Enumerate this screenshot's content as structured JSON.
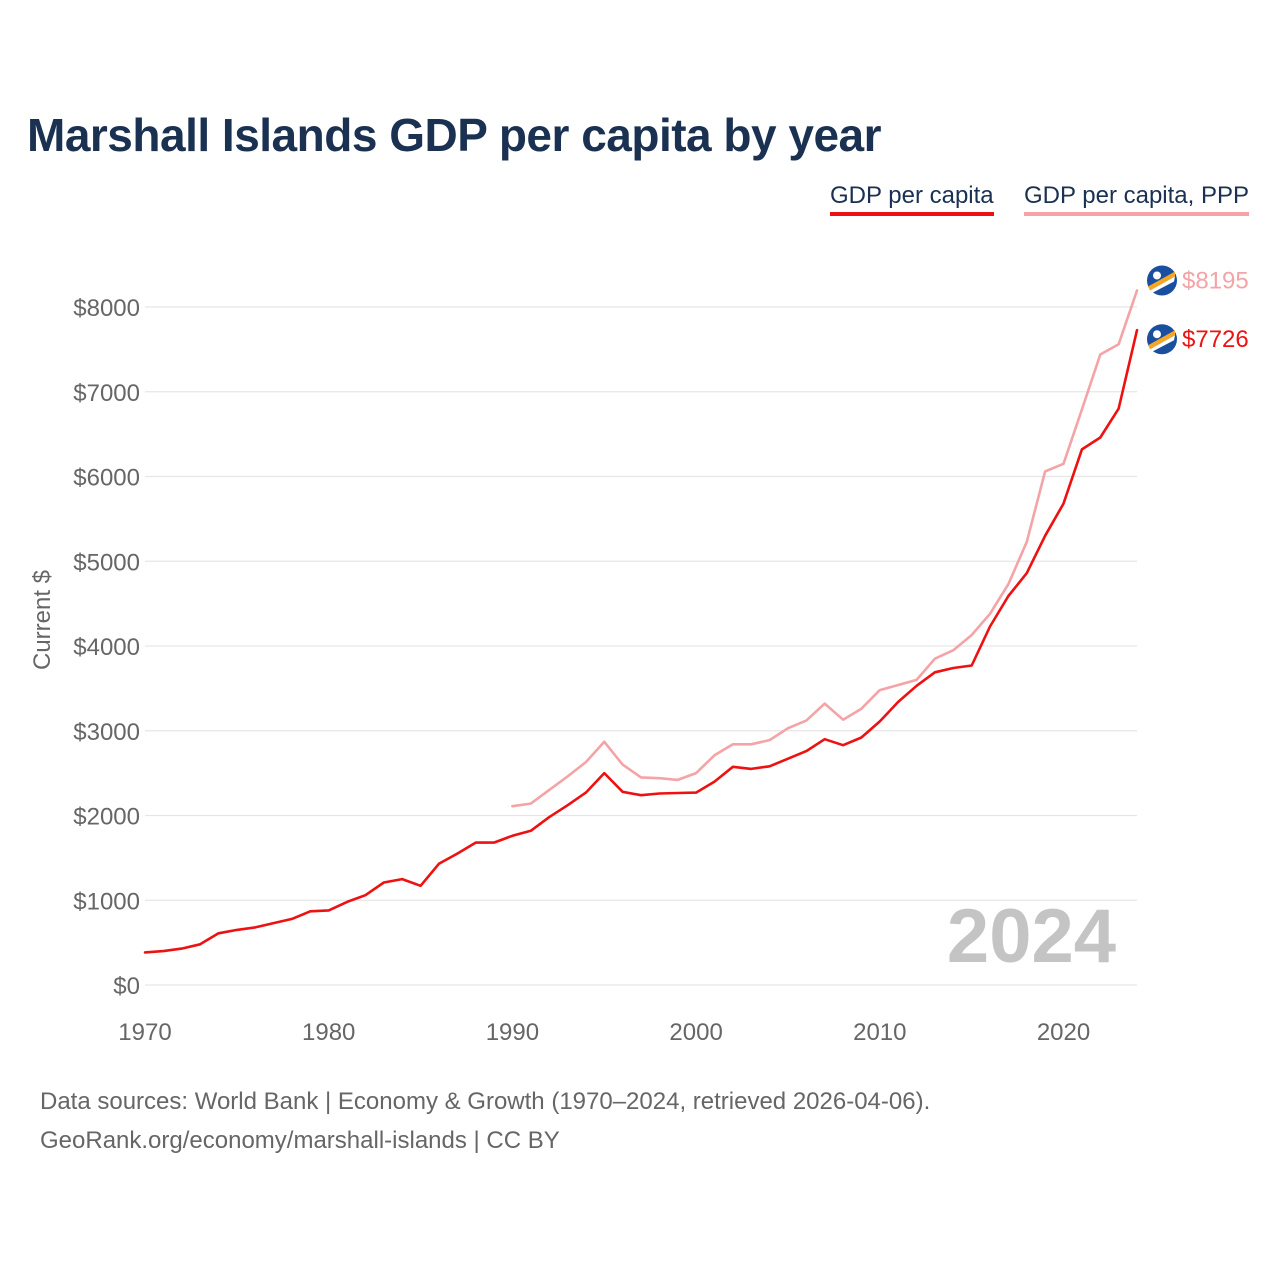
{
  "title": "Marshall Islands GDP per capita by year",
  "legend": {
    "gdp": "GDP per capita",
    "ppp": "GDP per capita, PPP"
  },
  "footer": {
    "line1": "Data sources: World Bank | Economy & Growth (1970–2024, retrieved 2026-04-06).",
    "line2": "GeoRank.org/economy/marshall-islands | CC BY"
  },
  "chart_data": {
    "type": "line",
    "title": "Marshall Islands GDP per capita by year",
    "xlabel": "",
    "ylabel": "Current $",
    "xlim": [
      1970,
      2024
    ],
    "ylim": [
      0,
      8000
    ],
    "xticks": [
      1970,
      1980,
      1990,
      2000,
      2010,
      2020
    ],
    "yticks": [
      0,
      1000,
      2000,
      3000,
      4000,
      5000,
      6000,
      7000,
      8000
    ],
    "ytick_labels": [
      "$0",
      "$1000",
      "$2000",
      "$3000",
      "$4000",
      "$5000",
      "$6000",
      "$7000",
      "$8000"
    ],
    "grid": true,
    "year_label": "2024",
    "colors": {
      "gdp": "#ee1111",
      "ppp": "#f4a3a6",
      "grid": "#e6e6e6",
      "axis_text": "#666666",
      "year": "#c4c4c4",
      "flag_blue": "#1a4fa0",
      "flag_orange": "#f5a623"
    },
    "series": [
      {
        "name": "GDP per capita",
        "end_label": "$7726",
        "x": [
          1970,
          1971,
          1972,
          1973,
          1974,
          1975,
          1976,
          1977,
          1978,
          1979,
          1980,
          1981,
          1982,
          1983,
          1984,
          1985,
          1986,
          1987,
          1988,
          1989,
          1990,
          1991,
          1992,
          1993,
          1994,
          1995,
          1996,
          1997,
          1998,
          1999,
          2000,
          2001,
          2002,
          2003,
          2004,
          2005,
          2006,
          2007,
          2008,
          2009,
          2010,
          2011,
          2012,
          2013,
          2014,
          2015,
          2016,
          2017,
          2018,
          2019,
          2020,
          2021,
          2022,
          2023,
          2024
        ],
        "values": [
          385,
          400,
          430,
          480,
          610,
          650,
          680,
          730,
          780,
          870,
          880,
          980,
          1060,
          1210,
          1250,
          1170,
          1430,
          1550,
          1680,
          1680,
          1760,
          1820,
          1980,
          2120,
          2270,
          2500,
          2280,
          2240,
          2260,
          2265,
          2270,
          2400,
          2575,
          2550,
          2580,
          2670,
          2760,
          2900,
          2830,
          2920,
          3110,
          3340,
          3530,
          3690,
          3740,
          3770,
          4230,
          4590,
          4860,
          5300,
          5680,
          6320,
          6460,
          6800,
          7726
        ]
      },
      {
        "name": "GDP per capita, PPP",
        "end_label": "$8195",
        "x": [
          1990,
          1991,
          1992,
          1993,
          1994,
          1995,
          1996,
          1997,
          1998,
          1999,
          2000,
          2001,
          2002,
          2003,
          2004,
          2005,
          2006,
          2007,
          2008,
          2009,
          2010,
          2011,
          2012,
          2013,
          2014,
          2015,
          2016,
          2017,
          2018,
          2019,
          2020,
          2021,
          2022,
          2023,
          2024
        ],
        "values": [
          2110,
          2140,
          2300,
          2460,
          2630,
          2870,
          2600,
          2450,
          2440,
          2420,
          2500,
          2710,
          2840,
          2840,
          2890,
          3030,
          3120,
          3320,
          3130,
          3260,
          3480,
          3540,
          3600,
          3850,
          3950,
          4130,
          4380,
          4730,
          5230,
          6060,
          6150,
          6790,
          7440,
          7560,
          8195
        ]
      }
    ]
  }
}
